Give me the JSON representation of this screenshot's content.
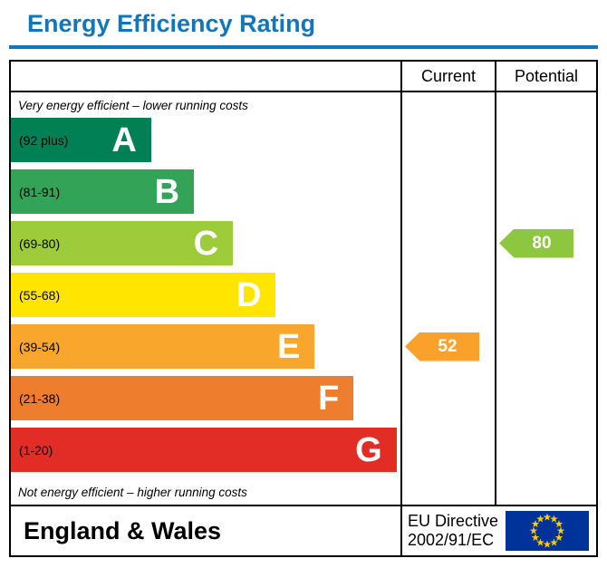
{
  "title": "Energy Efficiency Rating",
  "accent_color": "#1176bc",
  "table": {
    "columns": {
      "current": "Current",
      "potential": "Potential"
    }
  },
  "chart_data": {
    "type": "bar",
    "title": "Energy Efficiency Rating",
    "top_note": "Very energy efficient – lower running costs",
    "bottom_note": "Not energy efficient – higher running costs",
    "bands": [
      {
        "letter": "A",
        "range": "(92 plus)",
        "color": "#008054",
        "width_pct": 36
      },
      {
        "letter": "B",
        "range": "(81-91)",
        "color": "#33a357",
        "width_pct": 47
      },
      {
        "letter": "C",
        "range": "(69-80)",
        "color": "#9ecb3a",
        "width_pct": 57
      },
      {
        "letter": "D",
        "range": "(55-68)",
        "color": "#ffe500",
        "width_pct": 68
      },
      {
        "letter": "E",
        "range": "(39-54)",
        "color": "#f9a72c",
        "width_pct": 78
      },
      {
        "letter": "F",
        "range": "(21-38)",
        "color": "#ee7d2e",
        "width_pct": 88
      },
      {
        "letter": "G",
        "range": "(1-20)",
        "color": "#e22d26",
        "width_pct": 99
      }
    ],
    "current": {
      "value": 52,
      "band": "E",
      "color": "#f9a12b"
    },
    "potential": {
      "value": 80,
      "band": "C",
      "color": "#8dc63f"
    }
  },
  "footer": {
    "region": "England & Wales",
    "directive_line1": "EU Directive",
    "directive_line2": "2002/91/EC",
    "eu_flag": {
      "background": "#003399",
      "star_color": "#ffcc00"
    }
  }
}
